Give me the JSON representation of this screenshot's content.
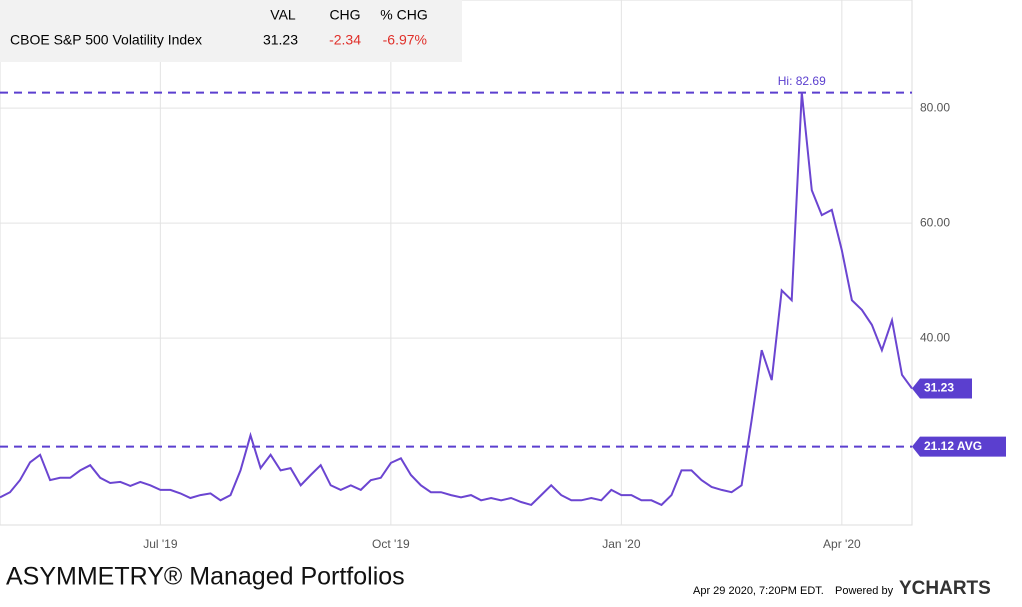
{
  "chart_data": {
    "type": "line",
    "summary": {
      "headers": [
        "VAL",
        "CHG",
        "% CHG"
      ],
      "name": "CBOE S&P 500 Volatility Index",
      "val": "31.23",
      "chg": "-2.34",
      "pchg": "-6.97%"
    },
    "categories": [
      null,
      null,
      null,
      null,
      null,
      null,
      null,
      null,
      null,
      null,
      null,
      null,
      null,
      null,
      null,
      null,
      "Jul '19",
      null,
      null,
      null,
      null,
      null,
      null,
      null,
      null,
      null,
      null,
      null,
      null,
      null,
      null,
      null,
      null,
      null,
      null,
      null,
      null,
      null,
      null,
      "Oct '19",
      null,
      null,
      null,
      null,
      null,
      null,
      null,
      null,
      null,
      null,
      null,
      null,
      null,
      null,
      null,
      null,
      null,
      null,
      null,
      null,
      null,
      null,
      "Jan '20",
      null,
      null,
      null,
      null,
      null,
      null,
      null,
      null,
      null,
      null,
      null,
      null,
      null,
      null,
      null,
      null,
      null,
      null,
      null,
      null,
      null,
      "Apr '20",
      null,
      null,
      null,
      null,
      null,
      null,
      null
    ],
    "series": [
      {
        "name": "CBOE S&P 500 Volatility Index",
        "color": "#6b45d1",
        "values": [
          12.3,
          13.2,
          15.3,
          18.4,
          19.7,
          15.3,
          15.7,
          15.7,
          17.0,
          17.9,
          15.7,
          14.8,
          15.0,
          14.3,
          15.0,
          14.4,
          13.6,
          13.6,
          13.0,
          12.2,
          12.7,
          13.0,
          11.8,
          12.7,
          17.0,
          23.1,
          17.4,
          19.7,
          17.0,
          17.4,
          14.4,
          16.2,
          17.9,
          14.4,
          13.6,
          14.4,
          13.6,
          15.3,
          15.7,
          18.3,
          19.1,
          16.2,
          14.4,
          13.2,
          13.2,
          12.7,
          12.3,
          12.7,
          11.8,
          12.2,
          11.8,
          12.2,
          11.5,
          11.0,
          12.7,
          14.4,
          12.7,
          11.8,
          11.8,
          12.2,
          11.8,
          13.6,
          12.7,
          12.7,
          11.8,
          11.8,
          11.0,
          12.7,
          17.0,
          17.0,
          15.3,
          14.1,
          13.6,
          13.2,
          14.4,
          25.7,
          37.9,
          32.7,
          48.3,
          46.6,
          82.69,
          65.7,
          61.4,
          62.3,
          55.3,
          46.6,
          44.9,
          42.3,
          37.9,
          43.1,
          33.6,
          31.23
        ]
      }
    ],
    "ylim": [
      7.5,
      98.8
    ],
    "yticks": [
      {
        "value": 40,
        "label": "40.00"
      },
      {
        "value": 60,
        "label": "60.00"
      },
      {
        "value": 80,
        "label": "80.00"
      }
    ],
    "grid": true,
    "hi": {
      "value": 82.69,
      "label": "Hi: 82.69"
    },
    "avg": {
      "value": 21.12,
      "label": "21.12 AVG"
    },
    "brand": "ASYMMETRY® Managed Portfolios",
    "timestamp": "Apr 29 2020, 7:20PM EDT.",
    "powered": "Powered by",
    "ycharts": "YCHARTS"
  }
}
